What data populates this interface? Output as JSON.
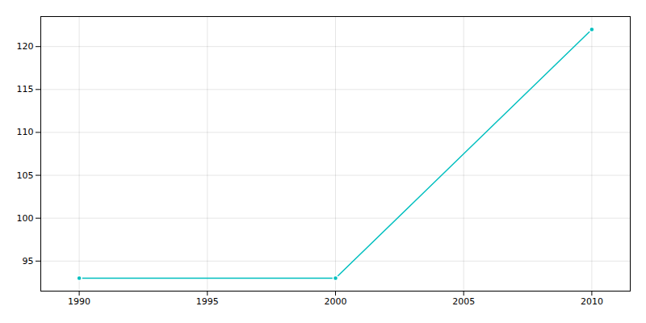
{
  "chart_data": {
    "type": "line",
    "x": [
      1990,
      2000,
      2010
    ],
    "values": [
      93,
      93,
      122
    ],
    "color": "#00BFBF",
    "marker": "circle",
    "xlim": [
      1988.5,
      2011.5
    ],
    "ylim": [
      91.5,
      123.5
    ],
    "xticks": [
      1990,
      1995,
      2000,
      2005,
      2010
    ],
    "yticks": [
      95,
      100,
      105,
      110,
      115,
      120
    ],
    "grid": true
  }
}
